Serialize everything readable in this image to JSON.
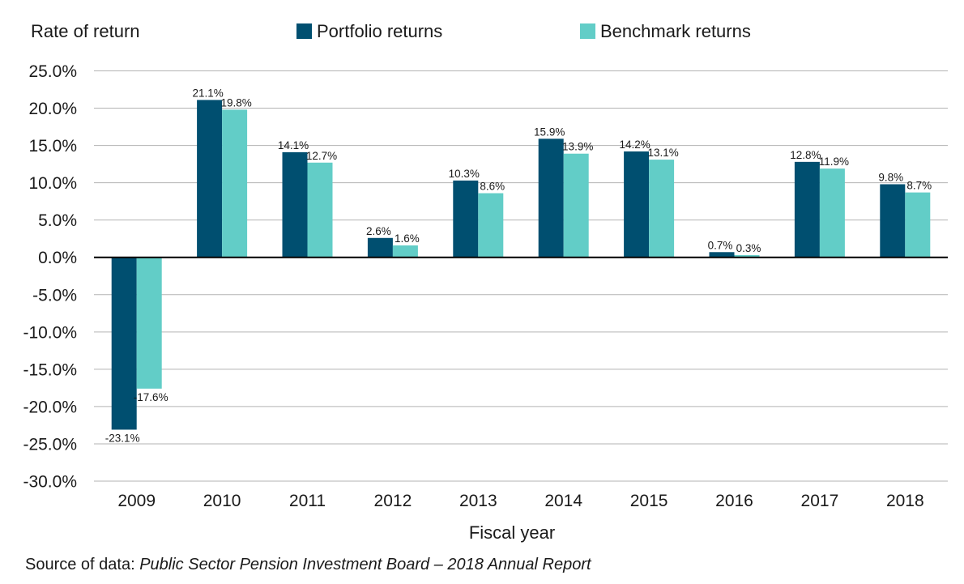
{
  "chart_data": {
    "type": "bar",
    "ylabel": "Rate of return",
    "xlabel": "Fiscal year",
    "categories": [
      "2009",
      "2010",
      "2011",
      "2012",
      "2013",
      "2014",
      "2015",
      "2016",
      "2017",
      "2018"
    ],
    "series": [
      {
        "name": "Portfolio returns",
        "color": "#004f70",
        "values": [
          -23.1,
          21.1,
          14.1,
          2.6,
          10.3,
          15.9,
          14.2,
          0.7,
          12.8,
          9.8
        ],
        "labels": [
          "-23.1%",
          "21.1%",
          "14.1%",
          "2.6%",
          "10.3%",
          "15.9%",
          "14.2%",
          "0.7%",
          "12.8%",
          "9.8%"
        ]
      },
      {
        "name": "Benchmark returns",
        "color": "#62cdc7",
        "values": [
          -17.6,
          19.8,
          12.7,
          1.6,
          8.6,
          13.9,
          13.1,
          0.3,
          11.9,
          8.7
        ],
        "labels": [
          "-17.6%",
          "19.8%",
          "12.7%",
          "1.6%",
          "8.6%",
          "13.9%",
          "13.1%",
          "0.3%",
          "11.9%",
          "8.7%"
        ]
      }
    ],
    "ylim": [
      -30,
      25
    ],
    "yticks": [
      25,
      20,
      15,
      10,
      5,
      0,
      -5,
      -10,
      -15,
      -20,
      -25,
      -30
    ],
    "ytick_labels": [
      "25.0%",
      "20.0%",
      "15.0%",
      "10.0%",
      "5.0%",
      "0.0%",
      "-5.0%",
      "-10.0%",
      "-15.0%",
      "-20.0%",
      "-25.0%",
      "-30.0%"
    ],
    "grid": true,
    "legend": "top"
  },
  "source": {
    "prefix": "Source of data: ",
    "title": "Public Sector Pension Investment Board – 2018 Annual Report"
  }
}
